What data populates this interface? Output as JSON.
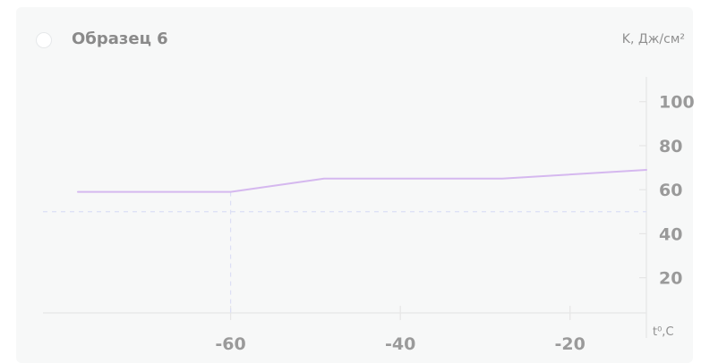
{
  "card": {
    "title": "Образец 6",
    "y_axis_label": "K, Дж/см²",
    "x_axis_label": "t⁰,C"
  },
  "colors": {
    "series": "#d5b8ef",
    "reference": "#dcdff5",
    "axis": "#e6e6e6",
    "tick_text": "#9a9a9a"
  },
  "chart_data": {
    "type": "line",
    "title": "Образец 6",
    "xlabel": "t⁰,C",
    "ylabel": "K, Дж/см²",
    "xlim": [
      -82,
      -11
    ],
    "ylim": [
      4,
      108
    ],
    "x_ticks": [
      -60,
      -40,
      -20
    ],
    "y_ticks": [
      20,
      40,
      60,
      80,
      100
    ],
    "grid": false,
    "series": [
      {
        "x": [
          -78,
          -60,
          -49,
          -28,
          -11
        ],
        "y": [
          59,
          59,
          65,
          65,
          69
        ]
      }
    ],
    "reference_lines": {
      "y": 50,
      "x": -60
    }
  }
}
